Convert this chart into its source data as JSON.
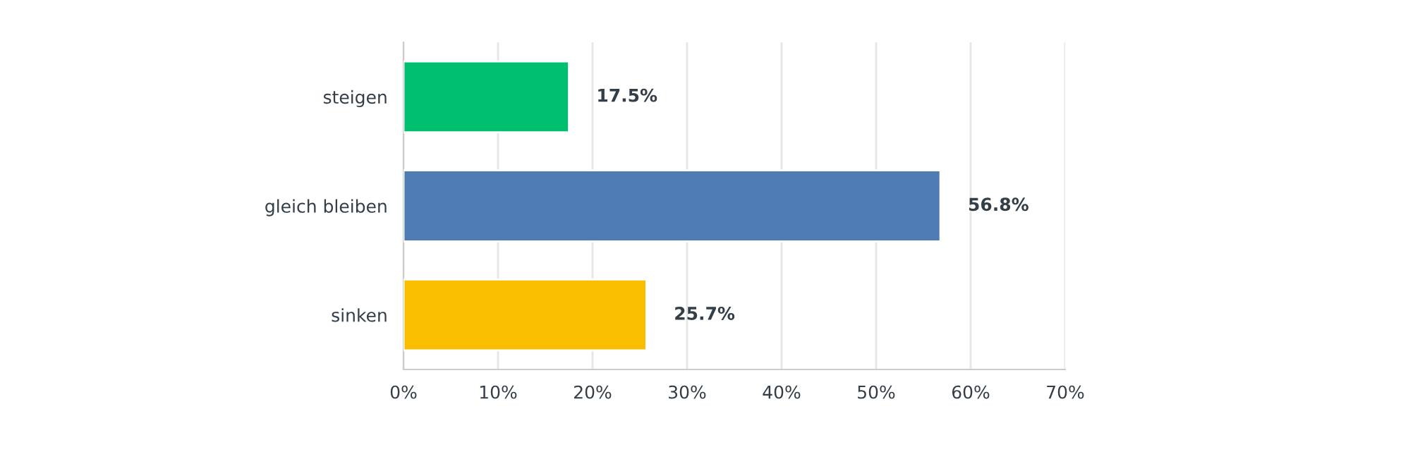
{
  "chart_data": {
    "type": "bar",
    "orientation": "horizontal",
    "categories": [
      "steigen",
      "gleich bleiben",
      "sinken"
    ],
    "values": [
      17.5,
      56.8,
      25.7
    ],
    "colors": [
      "#00bf6f",
      "#507cb6",
      "#f9be00"
    ],
    "value_labels": [
      "17.5%",
      "56.8%",
      "25.7%"
    ],
    "xlim": [
      0,
      70
    ],
    "xticks": [
      {
        "value": 0,
        "label": "0%"
      },
      {
        "value": 10,
        "label": "10%"
      },
      {
        "value": 20,
        "label": "20%"
      },
      {
        "value": 30,
        "label": "30%"
      },
      {
        "value": 40,
        "label": "40%"
      },
      {
        "value": 50,
        "label": "50%"
      },
      {
        "value": 60,
        "label": "60%"
      },
      {
        "value": 70,
        "label": "70%"
      }
    ],
    "grid": "x",
    "legend": false
  }
}
